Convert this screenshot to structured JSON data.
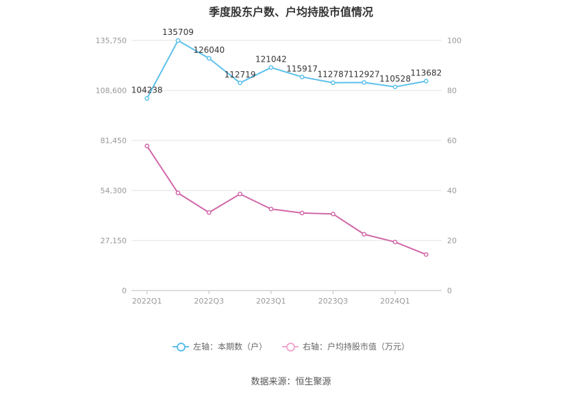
{
  "chart_data": {
    "type": "line",
    "title": "季度股东户数、户均持股市值情况",
    "categories": [
      "2022Q1",
      "2022Q2",
      "2022Q3",
      "2022Q4",
      "2023Q1",
      "2023Q2",
      "2023Q3",
      "2023Q4",
      "2024Q1",
      "2024Q2"
    ],
    "x_tick_labels": [
      "2022Q1",
      "",
      "2022Q3",
      "",
      "2023Q1",
      "",
      "2023Q3",
      "",
      "2024Q1",
      ""
    ],
    "left_axis": {
      "ylim": [
        0,
        135750
      ],
      "ticks": [
        "0",
        "27,150",
        "54,300",
        "81,450",
        "108,600",
        "135,750"
      ]
    },
    "right_axis": {
      "ylim": [
        0,
        100
      ],
      "ticks": [
        "0",
        "20",
        "40",
        "60",
        "80",
        "100"
      ]
    },
    "series": [
      {
        "name": "左轴：本期数（户）",
        "axis": "left",
        "color": "#5bc0eb",
        "values": [
          104238,
          135709,
          126040,
          112719,
          121042,
          115917,
          112787,
          112927,
          110528,
          113682
        ],
        "labels": [
          "104238",
          "135709",
          "126040",
          "112719",
          "121042",
          "115917",
          "112787",
          "112927",
          "110528",
          "113682"
        ]
      },
      {
        "name": "右轴：户均持股市值（万元）",
        "axis": "right",
        "color": "#d066a8",
        "values": [
          57.8,
          39.0,
          31.2,
          38.6,
          32.6,
          31.0,
          30.6,
          22.5,
          19.4,
          14.4
        ]
      }
    ],
    "grid": true,
    "legend_position": "bottom"
  },
  "source": "数据来源：恒生聚源"
}
